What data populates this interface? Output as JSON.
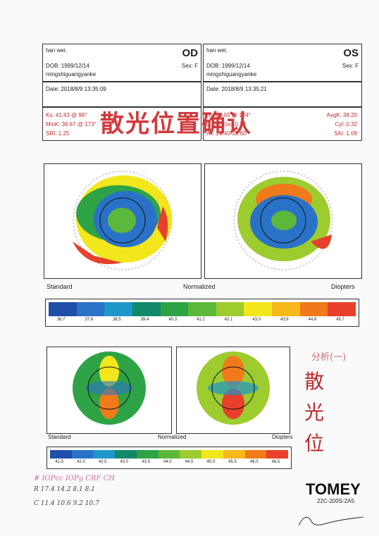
{
  "od": {
    "name": "han wei,",
    "eye": "OD",
    "dob": "DOB: 1999/12/14",
    "sex": "Sex: F",
    "clinic": "mingshiguangyanke",
    "date": "Date: 2018/8/9 13:35:09",
    "k_row1": "Ks: 41.43 @ 96°",
    "k_row2": "MinK: 36.67 @ 173°",
    "k_row3": "SRI: 1.25"
  },
  "os": {
    "name": "han wei,",
    "eye": "OS",
    "dob": "DOB: 1999/12/14",
    "sex": "Sex: F",
    "clinic": "mingshiguangyanke",
    "date": "Date: 2018/8/9 13:35:21",
    "avgk": "AvgK: 38.20",
    "cyl": "Cyl: 0.32",
    "sai": "SAI: 1.09",
    "k_row1": "Ks: 38.05 @ 124°",
    "k_row2": "0.77 / Enc: 0.72",
    "k_row3": "Ax: 20.40-20.60"
  },
  "stamp": "散光位置确认",
  "map_labels": {
    "standard": "Standard",
    "normalized": "Normalized",
    "diopters": "Diopters"
  },
  "scale1": {
    "labels": [
      "36.7",
      "37.6",
      "38.5",
      "39.4",
      "40.3",
      "41.2",
      "42.1",
      "43.0",
      "43.9",
      "44.8",
      "45.7"
    ],
    "colors": [
      "#1f4fa8",
      "#2a72c8",
      "#1f96c8",
      "#128a6a",
      "#2ea345",
      "#5cb83a",
      "#9ccc2e",
      "#f2e61c",
      "#f7b81a",
      "#f07a1a",
      "#e8402a"
    ]
  },
  "scale2": {
    "labels": [
      "41.5",
      "42.0",
      "42.5",
      "43.0",
      "43.5",
      "44.0",
      "44.5",
      "45.0",
      "45.5",
      "46.0",
      "46.5"
    ],
    "colors": [
      "#1f4fa8",
      "#2a72c8",
      "#1f96c8",
      "#128a6a",
      "#2ea345",
      "#5cb83a",
      "#9ccc2e",
      "#f2e61c",
      "#f7b81a",
      "#f07a1a",
      "#e8402a"
    ]
  },
  "side_note": {
    "header": "分析(一)",
    "chars": [
      "散",
      "光",
      "位"
    ]
  },
  "handwritten": {
    "header": "# IOPcc IOPg CRF CH",
    "row1": "R 17.4 14.2 8.1 8.1",
    "row2": "C 11.4 10.6 9.2 10.7"
  },
  "brand": {
    "name": "TOMEY",
    "code": "22C-200S-2A5"
  }
}
